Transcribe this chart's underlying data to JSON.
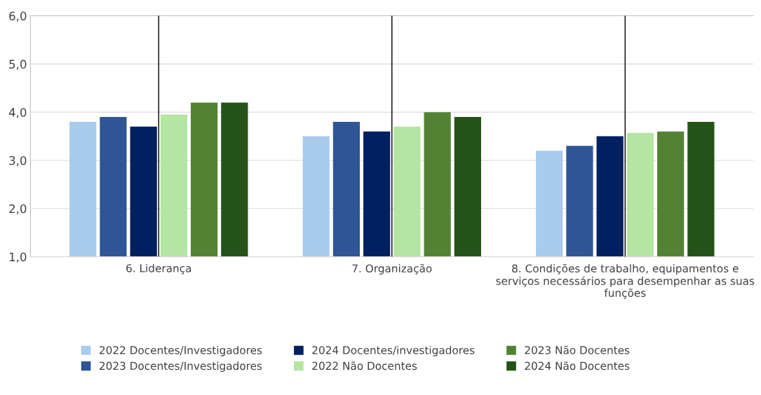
{
  "chart_data": {
    "type": "bar",
    "categories": [
      "6. Liderança",
      "7. Organização",
      "8. Condições de trabalho, equipamentos e serviços necessários para desempenhar as suas funções"
    ],
    "series": [
      {
        "name": "2022 Docentes/Investigadores",
        "color": "#a9cbec",
        "values": [
          3.8,
          3.5,
          3.2
        ]
      },
      {
        "name": "2023 Docentes/Investigadores",
        "color": "#2f5597",
        "values": [
          3.9,
          3.8,
          3.3
        ]
      },
      {
        "name": "2024 Docentes/investigadores",
        "color": "#002060",
        "values": [
          3.7,
          3.6,
          3.5
        ]
      },
      {
        "name": "2022 Não Docentes",
        "color": "#b4e5a2",
        "values": [
          3.95,
          3.7,
          3.57
        ]
      },
      {
        "name": "2023 Não Docentes",
        "color": "#548235",
        "values": [
          4.2,
          4.0,
          3.6
        ]
      },
      {
        "name": "2024 Não Docentes",
        "color": "#255219",
        "values": [
          4.2,
          3.9,
          3.8
        ]
      }
    ],
    "ylim": [
      1,
      6
    ],
    "yticks": [
      {
        "value": 1,
        "label": "1,0"
      },
      {
        "value": 2,
        "label": "2,0"
      },
      {
        "value": 3,
        "label": "3,0"
      },
      {
        "value": 4,
        "label": "4,0"
      },
      {
        "value": 5,
        "label": "5,0"
      },
      {
        "value": 6,
        "label": "6,0"
      }
    ],
    "ref_lines": [
      {
        "axis": "x",
        "value": "6. Liderança",
        "color": "#000000"
      },
      {
        "axis": "x",
        "value": "7. Organização",
        "color": "#000000"
      },
      {
        "axis": "x",
        "value": "8. Condições de trabalho, equipamentos e serviços necessários para desempenhar as suas funções",
        "color": "#000000"
      }
    ],
    "grid": "y",
    "legend": "bottom"
  }
}
